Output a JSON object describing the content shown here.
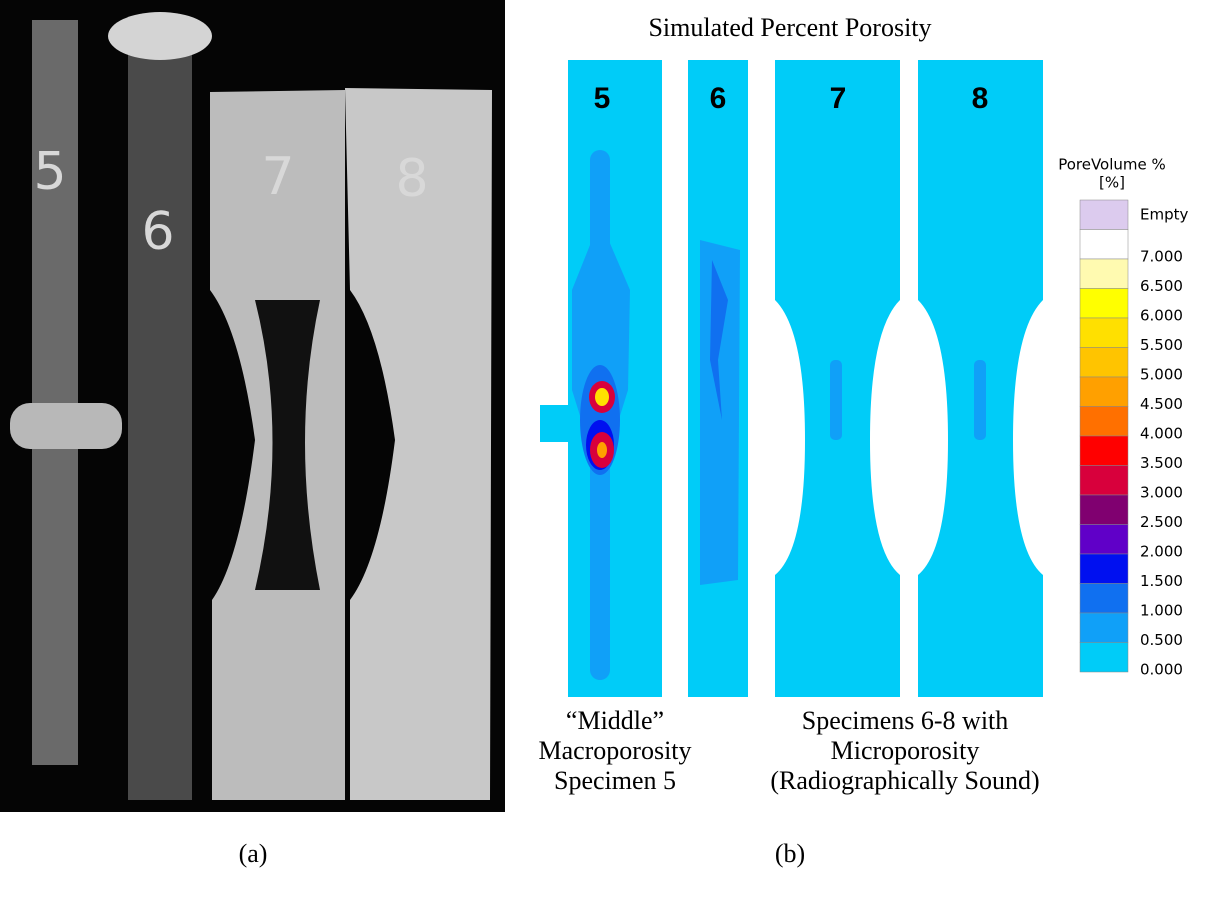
{
  "figure": {
    "photo": {
      "specimen_labels": [
        "5",
        "6",
        "7",
        "8"
      ]
    },
    "simulation": {
      "title": "Simulated Percent Porosity",
      "specimen_labels": [
        "5",
        "6",
        "7",
        "8"
      ],
      "legend": {
        "title": "PoreVolume %",
        "unit": "[%]",
        "entries": [
          {
            "label": "Empty",
            "color": "#dccbee"
          },
          {
            "label": "7.000",
            "color": "#ffffff"
          },
          {
            "label": "6.500",
            "color": "#fffab0"
          },
          {
            "label": "6.000",
            "color": "#ffff00"
          },
          {
            "label": "5.500",
            "color": "#ffe000"
          },
          {
            "label": "5.000",
            "color": "#ffc400"
          },
          {
            "label": "4.500",
            "color": "#ffa000"
          },
          {
            "label": "4.000",
            "color": "#ff7000"
          },
          {
            "label": "3.500",
            "color": "#ff0000"
          },
          {
            "label": "3.000",
            "color": "#d8003c"
          },
          {
            "label": "2.500",
            "color": "#800070"
          },
          {
            "label": "2.000",
            "color": "#6000c8"
          },
          {
            "label": "1.500",
            "color": "#0010f0"
          },
          {
            "label": "1.000",
            "color": "#1070f0"
          },
          {
            "label": "0.500",
            "color": "#10a0f8"
          },
          {
            "label": "0.000",
            "color": "#00ccf8"
          }
        ]
      }
    },
    "captions": {
      "left": [
        "“Middle”",
        "Macroporosity",
        "Specimen 5"
      ],
      "right": [
        "Specimens 6-8 with",
        "Microporosity",
        "(Radiographically Sound)"
      ]
    },
    "panel_labels": [
      "(a)",
      "(b)"
    ]
  }
}
